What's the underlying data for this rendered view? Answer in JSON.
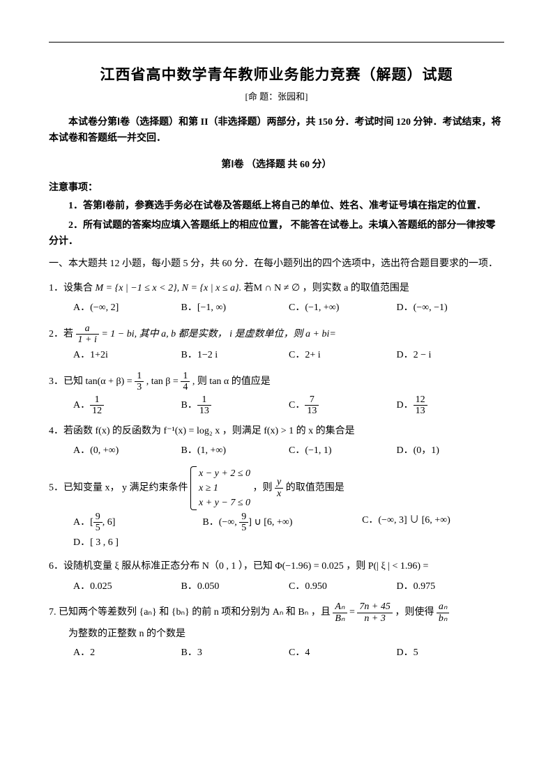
{
  "header": {
    "title": "江西省高中数学青年教师业务能力竞赛（解题）试题",
    "subtitle": "[命 题：张园和]"
  },
  "intro": "本试卷分第Ⅰ卷（选择题）和第 II（非选择题）两部分，共 150 分．考试时间 120 分钟．考试结束，将本试卷和答题纸一并交回．",
  "section1_header": "第Ⅰ卷 （选择题 共 60 分）",
  "notice": {
    "title": "注意事项：",
    "item1": "1．答第Ⅰ卷前，参赛选手务必在试卷及答题纸上将自己的单位、姓名、准考证号填在指定的位置．",
    "item2": "2．所有试题的答案均应填入答题纸上的相应位置， 不能答在试卷上。未填入答题纸的部分一律按零分计．"
  },
  "part1_instruction": "一、本大题共 12 小题，每小题 5 分，共 60 分．在每小题列出的四个选项中，选出符合题目要求的一项．",
  "questions": {
    "q1": {
      "stem_prefix": "1．设集合 ",
      "stem_math": "M = {x | −1 ≤ x < 2}, N = {x | x ≤ a}.",
      "stem_suffix": "若M ∩ N ≠ ∅ ，则实数 a 的取值范围是",
      "A": "A．(−∞, 2]",
      "B": "B．[−1, ∞)",
      "C": "C．(−1, +∞)",
      "D": "D．(−∞, −1)"
    },
    "q2": {
      "stem_prefix": "2．若 ",
      "frac_num": "a",
      "frac_den": "1 + i",
      "stem_mid": " = 1 − bi, 其中 a, b 都是实数， i 是虚数单位，则 a + bi=",
      "A": "A．1+2i",
      "B": "B．1−2 i",
      "C": "C．2+ i",
      "D": "D．2 − i"
    },
    "q3": {
      "stem_prefix": "3．已知 tan(α + β) = ",
      "f1_num": "1",
      "f1_den": "3",
      "stem_mid1": ", tan β = ",
      "f2_num": "1",
      "f2_den": "4",
      "stem_suffix": ", 则 tan α 的值应是",
      "A": "A．",
      "A_num": "1",
      "A_den": "12",
      "B": "B．",
      "B_num": "1",
      "B_den": "13",
      "C": "C．",
      "C_num": "7",
      "C_den": "13",
      "D": "D．",
      "D_num": "12",
      "D_den": "13"
    },
    "q4": {
      "stem": "4．若函数 f(x) 的反函数为 f⁻¹(x) = log₂ x ，则满足 f(x) > 1 的 x 的集合是",
      "A": "A．(0, +∞)",
      "B": "B．(1, +∞)",
      "C": "C．(−1, 1)",
      "D": "D．(0，1)"
    },
    "q5": {
      "stem_prefix": "5．已知变量 x， y 满足约束条件 ",
      "row1": "x − y + 2 ≤ 0",
      "row2": "x ≥ 1",
      "row3": "x + y − 7 ≤ 0",
      "stem_mid": " ，则 ",
      "frac_num": "y",
      "frac_den": "x",
      "stem_suffix": " 的取值范围是",
      "A_pre": "A．[",
      "A_num": "9",
      "A_den": "5",
      "A_post": ", 6]",
      "B_pre": "B．(−∞, ",
      "B_num": "9",
      "B_den": "5",
      "B_post": "] ∪ [6, +∞)",
      "C": "C．(−∞, 3] ∪ [6, +∞)",
      "D": "D．[ 3 , 6 ]"
    },
    "q6": {
      "stem": "6．设随机变量 ξ 服从标准正态分布 N（0 , 1 ），已知 Φ(−1.96) = 0.025 ，则 P(| ξ | < 1.96) =",
      "A": "A．0.025",
      "B": "B．0.050",
      "C": "C．0.950",
      "D": "D．0.975"
    },
    "q7": {
      "stem_prefix": "7. 已知两个等差数列 {aₙ} 和 {bₙ} 的前 n 项和分别为 Aₙ 和 Bₙ ，且 ",
      "f1_num": "Aₙ",
      "f1_den": "Bₙ",
      "stem_mid": " = ",
      "f2_num": "7n + 45",
      "f2_den": "n + 3",
      "stem_mid2": "，则使得 ",
      "f3_num": "aₙ",
      "f3_den": "bₙ",
      "stem_suffix": "为整数的正整数 n 的个数是",
      "A": "A．2",
      "B": "B．3",
      "C": "C．4",
      "D": "D．5"
    }
  }
}
